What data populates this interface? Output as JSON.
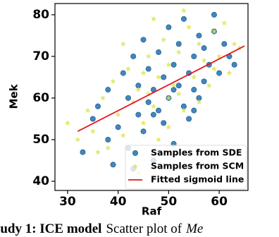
{
  "chart_data": {
    "type": "scatter",
    "xlabel": "Raf",
    "ylabel": "Mek",
    "xlim": [
      27.5,
      65.7
    ],
    "ylim": [
      37.8,
      82.7
    ],
    "xticks": [
      30,
      40,
      50,
      60
    ],
    "yticks": [
      40,
      50,
      60,
      70,
      80
    ],
    "legend": "lower right",
    "series": [
      {
        "name": "Samples from SDE",
        "type": "scatter",
        "marker": "circle",
        "color": "#2b7bba",
        "x": [
          33,
          35,
          36,
          38,
          38,
          40,
          41,
          42,
          42,
          43,
          44,
          44,
          45,
          45,
          46,
          46,
          47,
          47,
          48,
          48,
          49,
          49,
          50,
          50,
          51,
          51,
          52,
          52,
          53,
          53,
          54,
          54,
          55,
          55,
          56,
          56,
          57,
          57,
          58,
          59,
          60,
          61,
          62,
          63,
          39,
          43,
          47,
          51,
          55,
          59
        ],
        "values": [
          47,
          55,
          58,
          50,
          62,
          53,
          66,
          48,
          60,
          70,
          56,
          63,
          52,
          74,
          59,
          67,
          45,
          62,
          57,
          71,
          54,
          65,
          60,
          77,
          49,
          68,
          63,
          73,
          58,
          79,
          66,
          55,
          70,
          62,
          75,
          60,
          72,
          64,
          68,
          80,
          66,
          73,
          70,
          68,
          44,
          43,
          56,
          62,
          57,
          76
        ]
      },
      {
        "name": "Samples from SCM",
        "type": "scatter",
        "marker": "star",
        "color": "#dbe34a",
        "x": [
          30,
          32,
          34,
          35,
          37,
          38,
          39,
          40,
          41,
          42,
          43,
          44,
          45,
          46,
          46,
          47,
          48,
          48,
          49,
          50,
          50,
          51,
          52,
          53,
          54,
          55,
          56,
          57,
          58,
          59,
          60,
          61,
          62,
          63,
          64,
          41,
          44,
          47,
          50,
          53,
          56,
          59,
          36,
          45,
          52
        ],
        "values": [
          54,
          50,
          57,
          52,
          60,
          48,
          64,
          56,
          51,
          67,
          59,
          62,
          54,
          70,
          61,
          58,
          65,
          50,
          74,
          60,
          68,
          63,
          71,
          57,
          77,
          65,
          73,
          69,
          63,
          76,
          70,
          78,
          66,
          73,
          72,
          73,
          42,
          79,
          53,
          81,
          59,
          67,
          47,
          66,
          61
        ]
      },
      {
        "name": "Fitted sigmoid line",
        "type": "line",
        "color": "#e8141c",
        "x": [
          32,
          65
        ],
        "values": [
          52,
          72.5
        ]
      }
    ]
  },
  "caption": {
    "label": "tudy 1: ICE model",
    "text": "Scatter plot of",
    "math": "Me"
  }
}
